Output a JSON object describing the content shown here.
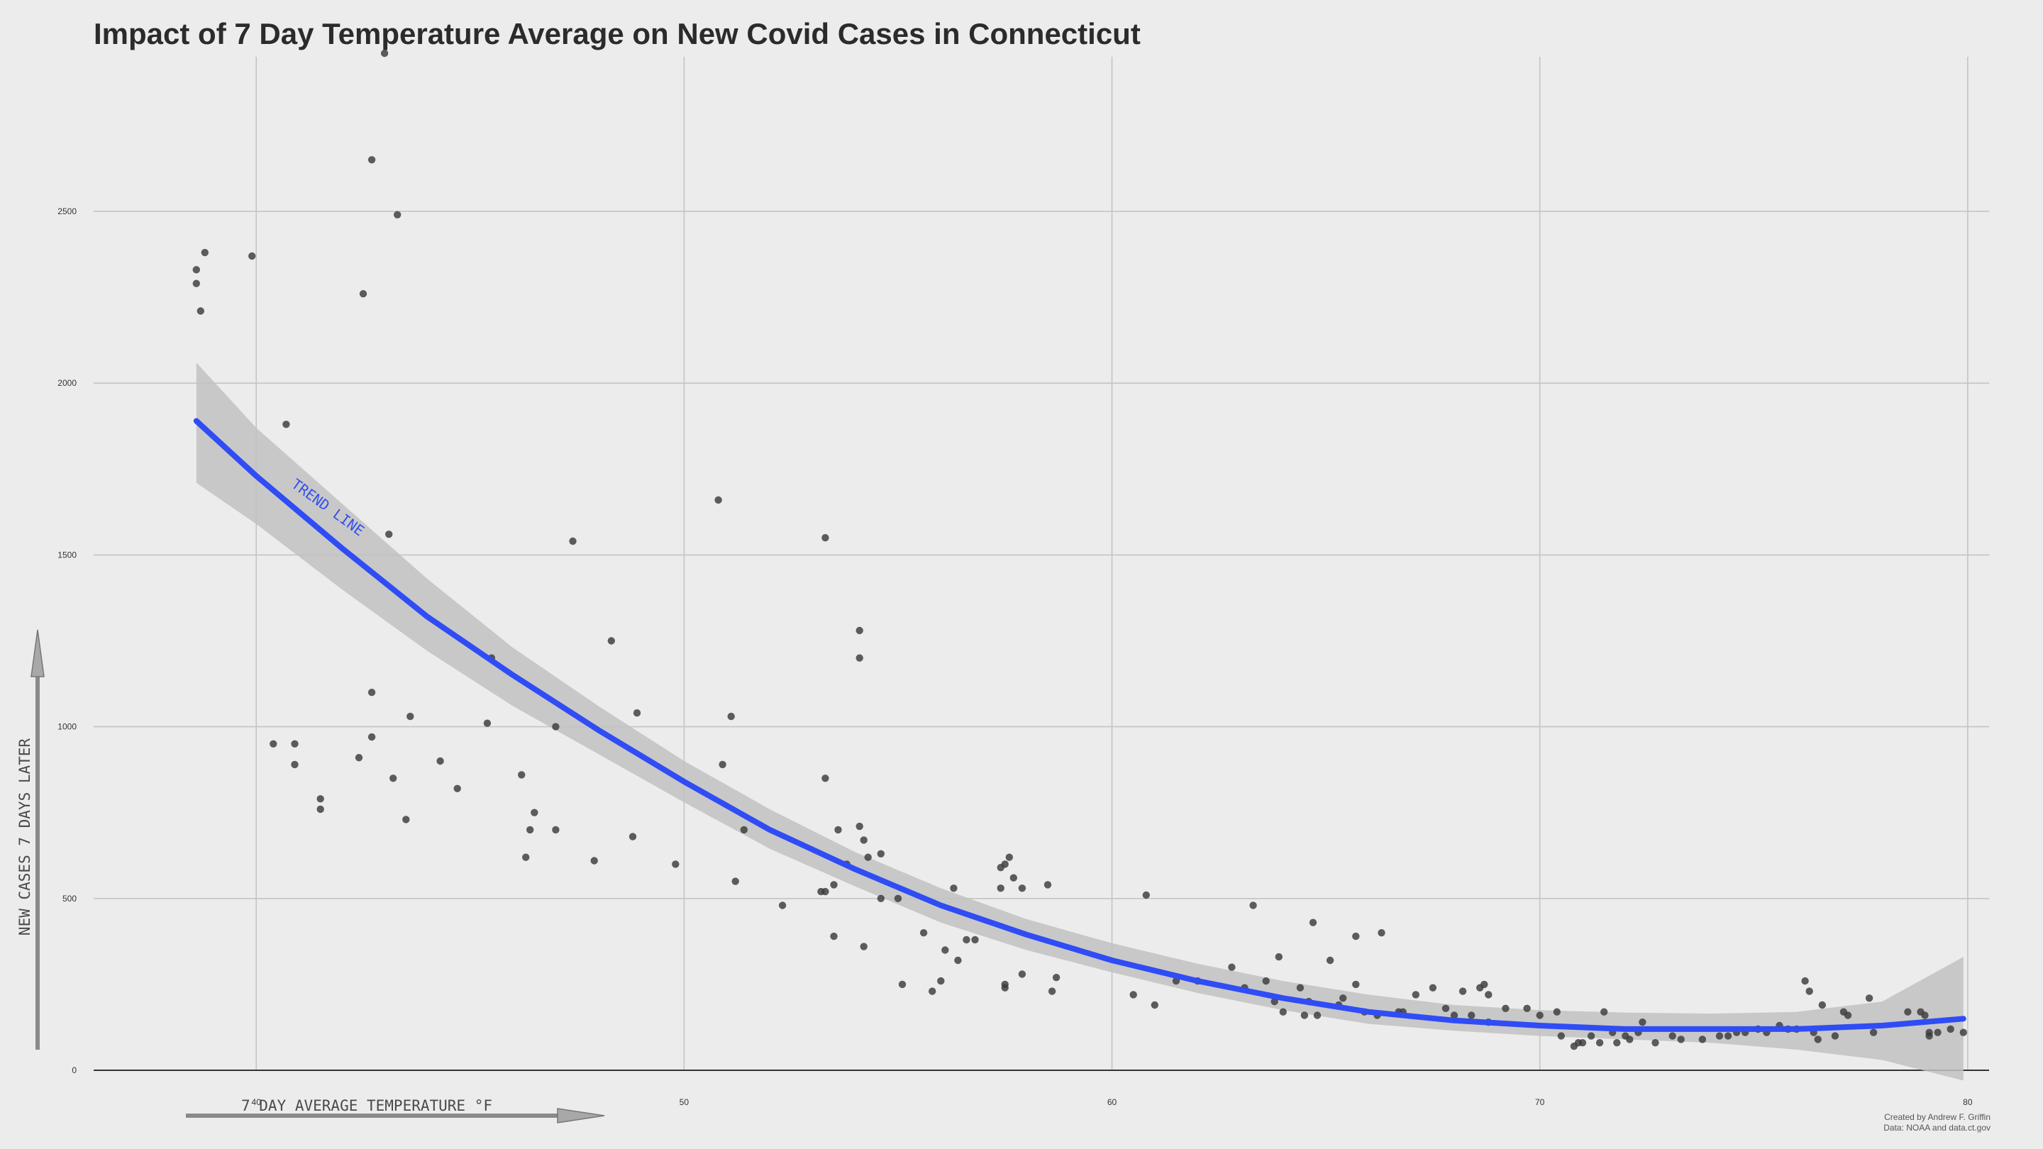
{
  "chart_data": {
    "type": "scatter",
    "title": "Impact of 7 Day Temperature Average on New Covid Cases in Connecticut",
    "xlabel": "7 DAY AVERAGE TEMPERATURE °F",
    "ylabel": "NEW CASES 7 DAYS LATER",
    "xlim": [
      36.2,
      80.5
    ],
    "ylim": [
      0,
      2950
    ],
    "x_ticks": [
      40,
      50,
      60,
      70,
      80
    ],
    "y_ticks": [
      0,
      500,
      1000,
      1500,
      2000,
      2500
    ],
    "grid": true,
    "trend_label": "TREND LINE",
    "trend_color": "#2f4cf5",
    "band_color": "#c2c2c2",
    "point_color": "#3a3a3a",
    "caption_lines": [
      "Created by Andrew F. Griffin",
      "Data: NOAA and data.ct.gov"
    ],
    "points": [
      [
        38.6,
        2330
      ],
      [
        38.6,
        2290
      ],
      [
        38.7,
        2210
      ],
      [
        38.8,
        2380
      ],
      [
        39.9,
        2370
      ],
      [
        43.0,
        2960
      ],
      [
        42.7,
        2650
      ],
      [
        43.3,
        2490
      ],
      [
        42.5,
        2260
      ],
      [
        40.7,
        1880
      ],
      [
        43.1,
        1560
      ],
      [
        47.4,
        1540
      ],
      [
        50.8,
        1660
      ],
      [
        53.3,
        1550
      ],
      [
        54.1,
        1280
      ],
      [
        54.1,
        1200
      ],
      [
        48.3,
        1250
      ],
      [
        45.5,
        1200
      ],
      [
        42.7,
        1100
      ],
      [
        43.6,
        1030
      ],
      [
        45.4,
        1010
      ],
      [
        47.0,
        1000
      ],
      [
        48.9,
        1040
      ],
      [
        51.1,
        1030
      ],
      [
        50.9,
        890
      ],
      [
        53.3,
        850
      ],
      [
        40.4,
        950
      ],
      [
        40.9,
        950
      ],
      [
        40.9,
        890
      ],
      [
        42.4,
        910
      ],
      [
        42.7,
        970
      ],
      [
        43.2,
        850
      ],
      [
        44.3,
        900
      ],
      [
        44.7,
        820
      ],
      [
        46.2,
        860
      ],
      [
        46.5,
        750
      ],
      [
        46.4,
        700
      ],
      [
        41.5,
        790
      ],
      [
        41.5,
        760
      ],
      [
        43.5,
        730
      ],
      [
        46.3,
        620
      ],
      [
        47.0,
        700
      ],
      [
        47.9,
        610
      ],
      [
        48.8,
        680
      ],
      [
        49.8,
        600
      ],
      [
        51.2,
        550
      ],
      [
        51.4,
        700
      ],
      [
        52.3,
        480
      ],
      [
        53.2,
        520
      ],
      [
        53.3,
        520
      ],
      [
        53.5,
        540
      ],
      [
        53.6,
        700
      ],
      [
        53.8,
        600
      ],
      [
        54.1,
        710
      ],
      [
        54.2,
        670
      ],
      [
        54.3,
        620
      ],
      [
        54.6,
        630
      ],
      [
        54.6,
        500
      ],
      [
        55.0,
        500
      ],
      [
        55.1,
        250
      ],
      [
        55.6,
        400
      ],
      [
        55.8,
        230
      ],
      [
        56.0,
        260
      ],
      [
        56.1,
        350
      ],
      [
        56.4,
        320
      ],
      [
        56.6,
        380
      ],
      [
        56.8,
        380
      ],
      [
        53.5,
        390
      ],
      [
        54.2,
        360
      ],
      [
        56.3,
        530
      ],
      [
        57.4,
        590
      ],
      [
        57.5,
        600
      ],
      [
        57.6,
        620
      ],
      [
        57.7,
        560
      ],
      [
        57.9,
        530
      ],
      [
        57.4,
        530
      ],
      [
        57.5,
        240
      ],
      [
        57.5,
        250
      ],
      [
        57.9,
        280
      ],
      [
        58.5,
        540
      ],
      [
        58.6,
        230
      ],
      [
        58.7,
        270
      ],
      [
        60.5,
        220
      ],
      [
        60.8,
        510
      ],
      [
        61.0,
        190
      ],
      [
        61.5,
        260
      ],
      [
        62.0,
        260
      ],
      [
        62.8,
        300
      ],
      [
        63.1,
        240
      ],
      [
        63.3,
        480
      ],
      [
        63.6,
        260
      ],
      [
        63.8,
        200
      ],
      [
        63.9,
        330
      ],
      [
        64.0,
        170
      ],
      [
        64.4,
        240
      ],
      [
        64.5,
        160
      ],
      [
        64.6,
        200
      ],
      [
        64.7,
        430
      ],
      [
        64.8,
        160
      ],
      [
        65.1,
        320
      ],
      [
        65.3,
        190
      ],
      [
        65.4,
        210
      ],
      [
        65.7,
        390
      ],
      [
        65.7,
        250
      ],
      [
        65.9,
        170
      ],
      [
        66.2,
        160
      ],
      [
        66.3,
        400
      ],
      [
        66.7,
        170
      ],
      [
        66.8,
        170
      ],
      [
        67.1,
        220
      ],
      [
        67.5,
        240
      ],
      [
        67.8,
        180
      ],
      [
        68.0,
        160
      ],
      [
        68.2,
        230
      ],
      [
        68.4,
        160
      ],
      [
        68.6,
        240
      ],
      [
        68.7,
        250
      ],
      [
        68.8,
        140
      ],
      [
        68.8,
        220
      ],
      [
        69.2,
        180
      ],
      [
        69.7,
        180
      ],
      [
        70.0,
        160
      ],
      [
        70.4,
        170
      ],
      [
        70.5,
        100
      ],
      [
        70.8,
        70
      ],
      [
        70.9,
        80
      ],
      [
        71.0,
        80
      ],
      [
        71.2,
        100
      ],
      [
        71.4,
        80
      ],
      [
        71.5,
        170
      ],
      [
        71.7,
        110
      ],
      [
        71.8,
        80
      ],
      [
        72.0,
        100
      ],
      [
        72.1,
        90
      ],
      [
        72.3,
        110
      ],
      [
        72.4,
        140
      ],
      [
        72.7,
        80
      ],
      [
        73.1,
        100
      ],
      [
        73.3,
        90
      ],
      [
        73.8,
        90
      ],
      [
        74.2,
        100
      ],
      [
        74.4,
        100
      ],
      [
        74.6,
        110
      ],
      [
        74.8,
        110
      ],
      [
        75.1,
        120
      ],
      [
        75.3,
        110
      ],
      [
        75.6,
        130
      ],
      [
        75.8,
        120
      ],
      [
        76.0,
        120
      ],
      [
        76.2,
        260
      ],
      [
        76.3,
        230
      ],
      [
        76.4,
        110
      ],
      [
        76.5,
        90
      ],
      [
        76.6,
        190
      ],
      [
        76.9,
        100
      ],
      [
        77.1,
        170
      ],
      [
        77.2,
        160
      ],
      [
        77.7,
        210
      ],
      [
        77.8,
        110
      ],
      [
        78.6,
        170
      ],
      [
        78.9,
        170
      ],
      [
        79.0,
        160
      ],
      [
        79.1,
        100
      ],
      [
        79.1,
        110
      ],
      [
        79.3,
        110
      ],
      [
        79.6,
        120
      ],
      [
        79.9,
        110
      ]
    ],
    "trend": {
      "x": [
        38.6,
        40,
        42,
        44,
        46,
        48,
        50,
        52,
        54,
        56,
        58,
        60,
        62,
        64,
        66,
        68,
        70,
        72,
        74,
        76,
        78,
        79.9
      ],
      "fit": [
        1890,
        1730,
        1520,
        1320,
        1150,
        990,
        840,
        700,
        585,
        480,
        395,
        320,
        260,
        210,
        170,
        145,
        130,
        120,
        120,
        120,
        130,
        150
      ],
      "upper": [
        2060,
        1870,
        1650,
        1430,
        1230,
        1060,
        900,
        760,
        635,
        530,
        440,
        370,
        310,
        260,
        220,
        190,
        175,
        168,
        165,
        170,
        200,
        330
      ],
      "lower": [
        1710,
        1590,
        1400,
        1220,
        1060,
        920,
        780,
        645,
        535,
        430,
        350,
        285,
        225,
        175,
        135,
        115,
        100,
        90,
        80,
        60,
        30,
        -30
      ]
    }
  }
}
